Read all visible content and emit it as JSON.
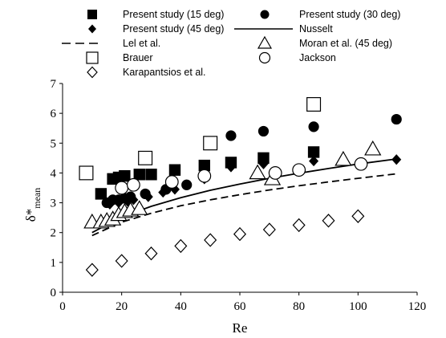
{
  "chart_data": {
    "type": "scatter",
    "title": "",
    "xlabel": "Re",
    "ylabel": "δ*",
    "ylabel_sub": "mean",
    "xlim": [
      0,
      120
    ],
    "ylim": [
      0,
      7
    ],
    "xticks": [
      "0",
      "20",
      "40",
      "60",
      "80",
      "100",
      "120"
    ],
    "yticks": [
      "0",
      "1",
      "2",
      "3",
      "4",
      "5",
      "6",
      "7"
    ],
    "grid": false,
    "legend_placement": "top",
    "series": [
      {
        "name": "Present study (15 deg)",
        "marker": "filled-square",
        "x": [
          13,
          17,
          19,
          21,
          26,
          30,
          38,
          48,
          57,
          68,
          85
        ],
        "y": [
          3.3,
          3.8,
          3.85,
          3.9,
          3.95,
          3.95,
          4.1,
          4.25,
          4.35,
          4.5,
          4.7
        ]
      },
      {
        "name": "Present study (30 deg)",
        "marker": "filled-circle",
        "x": [
          15,
          17,
          19,
          21,
          23,
          28,
          35,
          42,
          57,
          68,
          85,
          113
        ],
        "y": [
          3.0,
          3.1,
          3.1,
          3.15,
          3.2,
          3.3,
          3.45,
          3.6,
          5.25,
          5.4,
          5.55,
          5.8
        ]
      },
      {
        "name": "Present study (45 deg)",
        "marker": "filled-diamond",
        "x": [
          16,
          19,
          22,
          24,
          29,
          34,
          38,
          42,
          48,
          57,
          68,
          85,
          113
        ],
        "y": [
          2.95,
          3.0,
          3.05,
          3.1,
          3.2,
          3.35,
          3.45,
          3.6,
          3.8,
          4.2,
          4.3,
          4.4,
          4.45
        ]
      },
      {
        "name": "Nusselt",
        "marker": "solid-line",
        "x": [
          10,
          20,
          30,
          40,
          50,
          60,
          70,
          80,
          90,
          100,
          113
        ],
        "y": [
          2.0,
          2.52,
          2.88,
          3.17,
          3.42,
          3.63,
          3.82,
          3.99,
          4.15,
          4.3,
          4.47
        ]
      },
      {
        "name": "Lel et al.",
        "marker": "dashed-line",
        "x": [
          10,
          20,
          30,
          40,
          50,
          60,
          70,
          80,
          90,
          100,
          113
        ],
        "y": [
          1.9,
          2.35,
          2.65,
          2.9,
          3.1,
          3.27,
          3.43,
          3.57,
          3.7,
          3.82,
          3.97
        ]
      },
      {
        "name": "Moran et al. (45 deg)",
        "marker": "open-triangle",
        "x": [
          10,
          13,
          15,
          17,
          19,
          21,
          23,
          26,
          66,
          71,
          95,
          105
        ],
        "y": [
          2.35,
          2.35,
          2.4,
          2.45,
          2.6,
          2.7,
          2.75,
          2.8,
          4.0,
          3.8,
          4.45,
          4.8
        ]
      },
      {
        "name": "Brauer",
        "marker": "open-square",
        "x": [
          8,
          28,
          50,
          85
        ],
        "y": [
          4.0,
          4.5,
          5.0,
          6.3
        ]
      },
      {
        "name": "Jackson",
        "marker": "open-circle",
        "x": [
          20,
          24,
          37,
          48,
          72,
          80,
          101
        ],
        "y": [
          3.5,
          3.6,
          3.7,
          3.9,
          4.0,
          4.1,
          4.3
        ]
      },
      {
        "name": "Karapantsios et al.",
        "marker": "open-diamond",
        "x": [
          10,
          20,
          30,
          40,
          50,
          60,
          70,
          80,
          90,
          100
        ],
        "y": [
          0.75,
          1.05,
          1.3,
          1.55,
          1.75,
          1.95,
          2.1,
          2.25,
          2.4,
          2.55
        ]
      }
    ]
  }
}
